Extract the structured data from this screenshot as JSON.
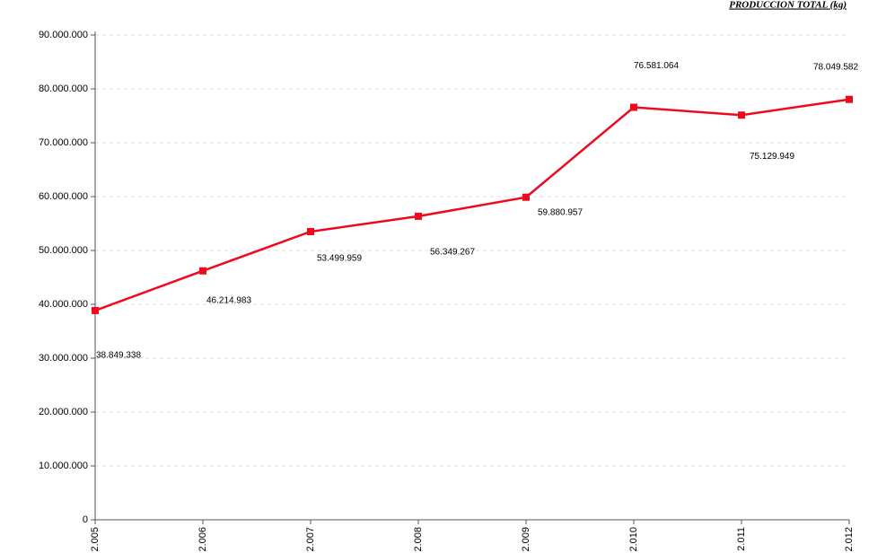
{
  "chart_data": {
    "type": "line",
    "title": "PRODUCCION TOTAL (kg)",
    "categories": [
      "2.005",
      "2.006",
      "2.007",
      "2.008",
      "2.009",
      "2.010",
      "2.011",
      "2.012"
    ],
    "series": [
      {
        "name": "PRODUCCION TOTAL (kg)",
        "color": "#ee0a1c",
        "values": [
          38849338,
          46214983,
          53499959,
          56349267,
          59880957,
          76581064,
          75129949,
          78049582
        ],
        "value_labels": [
          "38.849.338",
          "46.214.983",
          "53.499.959",
          "56.349.267",
          "59.880.957",
          "76.581.064",
          "75.129.949",
          "78.049.582"
        ]
      }
    ],
    "ylim": [
      0,
      90000000
    ],
    "yticks": [
      0,
      {
        "value": 10000000,
        "label": "10.000.000"
      },
      {
        "value": 20000000,
        "label": "20.000.000"
      },
      {
        "value": 30000000,
        "label": "30.000.000"
      },
      {
        "value": 40000000,
        "label": "40.000.000"
      },
      {
        "value": 50000000,
        "label": "50.000.000"
      },
      {
        "value": 60000000,
        "label": "60.000.000"
      },
      {
        "value": 70000000,
        "label": "70.000.000"
      },
      {
        "value": 80000000,
        "label": "80.000.000"
      },
      {
        "value": 90000000,
        "label": "90.000.000"
      }
    ],
    "grid": true
  }
}
